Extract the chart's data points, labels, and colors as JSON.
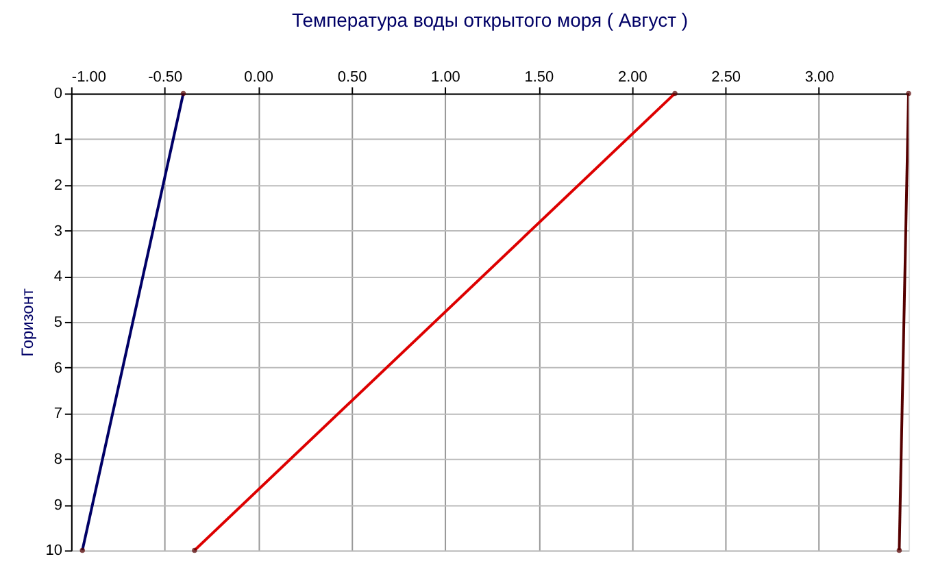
{
  "chart_data": {
    "type": "line",
    "title": "Температура воды открытого моря    ( Август )",
    "ylabel": "Горизонт",
    "xlim": [
      -1.0,
      3.48
    ],
    "xticks": [
      {
        "value": -1.0,
        "label": "-1.00"
      },
      {
        "value": -0.5,
        "label": "-0.50"
      },
      {
        "value": 0,
        "label": "0.00"
      },
      {
        "value": 0.5,
        "label": "0.50"
      },
      {
        "value": 1.0,
        "label": "1.00"
      },
      {
        "value": 1.5,
        "label": "1.50"
      },
      {
        "value": 2.0,
        "label": "2.00"
      },
      {
        "value": 2.5,
        "label": "2.50"
      },
      {
        "value": 3.0,
        "label": "3.00"
      }
    ],
    "ylim": [
      10,
      0
    ],
    "yticks": [
      0,
      1,
      2,
      3,
      4,
      5,
      6,
      7,
      8,
      9,
      10
    ],
    "grid": true,
    "marker": "circle",
    "line_style": "solid",
    "series": [
      {
        "color": "#000066",
        "x": [
          -0.4,
          -0.94
        ],
        "values": [
          0,
          10
        ]
      },
      {
        "color": "#dd0000",
        "x": [
          2.23,
          -0.34
        ],
        "values": [
          0,
          10
        ]
      },
      {
        "color": "#550000",
        "x": [
          3.48,
          3.43
        ],
        "values": [
          0,
          10
        ]
      }
    ]
  }
}
